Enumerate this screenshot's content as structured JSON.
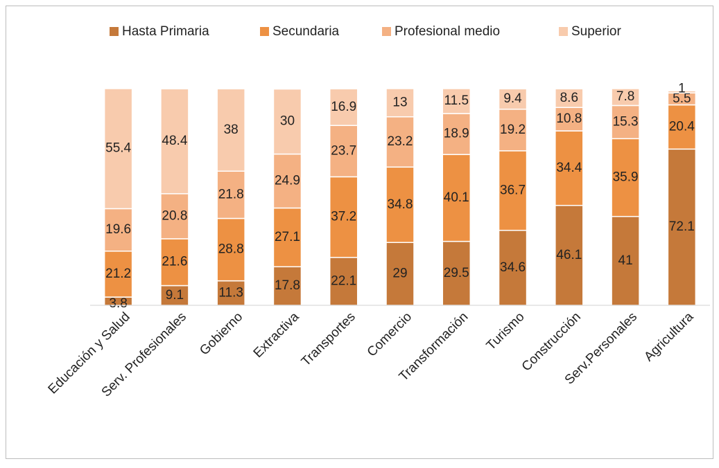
{
  "chart_data": {
    "type": "stacked_bar",
    "categories": [
      "Educación y Salud",
      "Serv. Profesionales",
      "Gobierno",
      "Extractiva",
      "Transportes",
      "Comercio",
      "Transformación",
      "Turismo",
      "Construcción",
      "Serv.Personales",
      "Agricultura"
    ],
    "series": [
      {
        "name": "Hasta Primaria",
        "color": "#c5793a",
        "values": [
          3.8,
          9.1,
          11.3,
          17.8,
          22.1,
          29,
          29.5,
          34.6,
          46.1,
          41,
          72.1
        ]
      },
      {
        "name": "Secundaria",
        "color": "#ed9143",
        "values": [
          21.2,
          21.6,
          28.8,
          27.1,
          37.2,
          34.8,
          40.1,
          36.7,
          34.4,
          35.9,
          20.4
        ]
      },
      {
        "name": "Profesional medio",
        "color": "#f4b183",
        "values": [
          19.6,
          20.8,
          21.8,
          24.9,
          23.7,
          23.2,
          18.9,
          19.2,
          10.8,
          15.3,
          5.5
        ]
      },
      {
        "name": "Superior",
        "color": "#f8cbad",
        "values": [
          55.4,
          48.4,
          38,
          30,
          16.9,
          13,
          11.5,
          9.4,
          8.6,
          7.8,
          1
        ]
      }
    ],
    "ylim": [
      0,
      100
    ],
    "legend": "top"
  }
}
